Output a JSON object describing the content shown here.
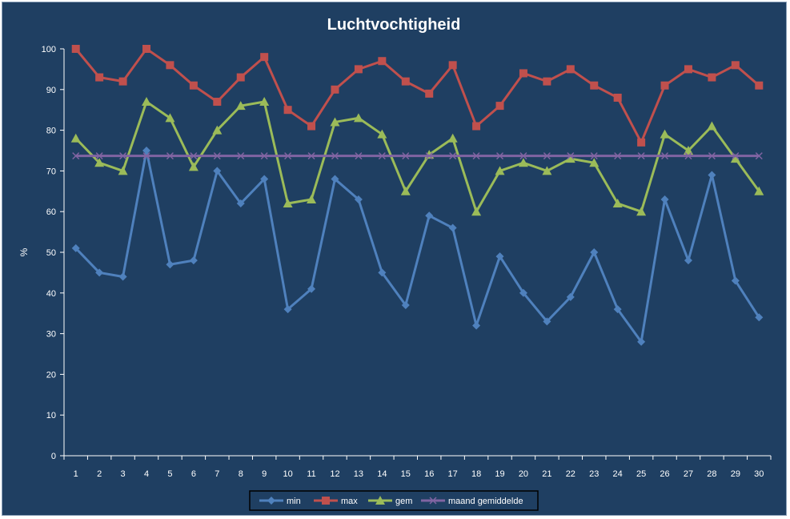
{
  "chart_data": {
    "type": "line",
    "title": "Luchtvochtigheid",
    "xlabel": "",
    "ylabel": "%",
    "ylim": [
      0,
      100
    ],
    "yticks": [
      0,
      10,
      20,
      30,
      40,
      50,
      60,
      70,
      80,
      90,
      100
    ],
    "grid": false,
    "legend_position": "bottom",
    "categories": [
      "1",
      "2",
      "3",
      "4",
      "5",
      "6",
      "7",
      "8",
      "9",
      "10",
      "11",
      "12",
      "13",
      "14",
      "15",
      "16",
      "17",
      "18",
      "19",
      "20",
      "21",
      "22",
      "23",
      "24",
      "25",
      "26",
      "27",
      "28",
      "29",
      "30"
    ],
    "series": [
      {
        "name": "min",
        "color": "#4f81bd",
        "marker": "diamond",
        "values": [
          51,
          45,
          44,
          75,
          47,
          48,
          70,
          62,
          68,
          36,
          41,
          68,
          63,
          45,
          37,
          59,
          56,
          32,
          49,
          40,
          33,
          39,
          50,
          36,
          28,
          63,
          48,
          69,
          43,
          34
        ]
      },
      {
        "name": "max",
        "color": "#c0504d",
        "marker": "square",
        "values": [
          100,
          93,
          92,
          100,
          96,
          91,
          87,
          93,
          98,
          85,
          81,
          90,
          95,
          97,
          92,
          89,
          96,
          81,
          86,
          94,
          92,
          95,
          91,
          88,
          77,
          91,
          95,
          93,
          96,
          91
        ]
      },
      {
        "name": "gem",
        "color": "#9bbb59",
        "marker": "triangle",
        "values": [
          78,
          72,
          70,
          87,
          83,
          71,
          80,
          86,
          87,
          62,
          63,
          82,
          83,
          79,
          65,
          74,
          78,
          60,
          70,
          72,
          70,
          73,
          72,
          62,
          60,
          79,
          75,
          81,
          73,
          65
        ]
      },
      {
        "name": "maand gemiddelde",
        "color": "#8064a2",
        "marker": "x",
        "values": [
          73.7,
          73.7,
          73.7,
          73.7,
          73.7,
          73.7,
          73.7,
          73.7,
          73.7,
          73.7,
          73.7,
          73.7,
          73.7,
          73.7,
          73.7,
          73.7,
          73.7,
          73.7,
          73.7,
          73.7,
          73.7,
          73.7,
          73.7,
          73.7,
          73.7,
          73.7,
          73.7,
          73.7,
          73.7,
          73.7
        ]
      }
    ]
  }
}
